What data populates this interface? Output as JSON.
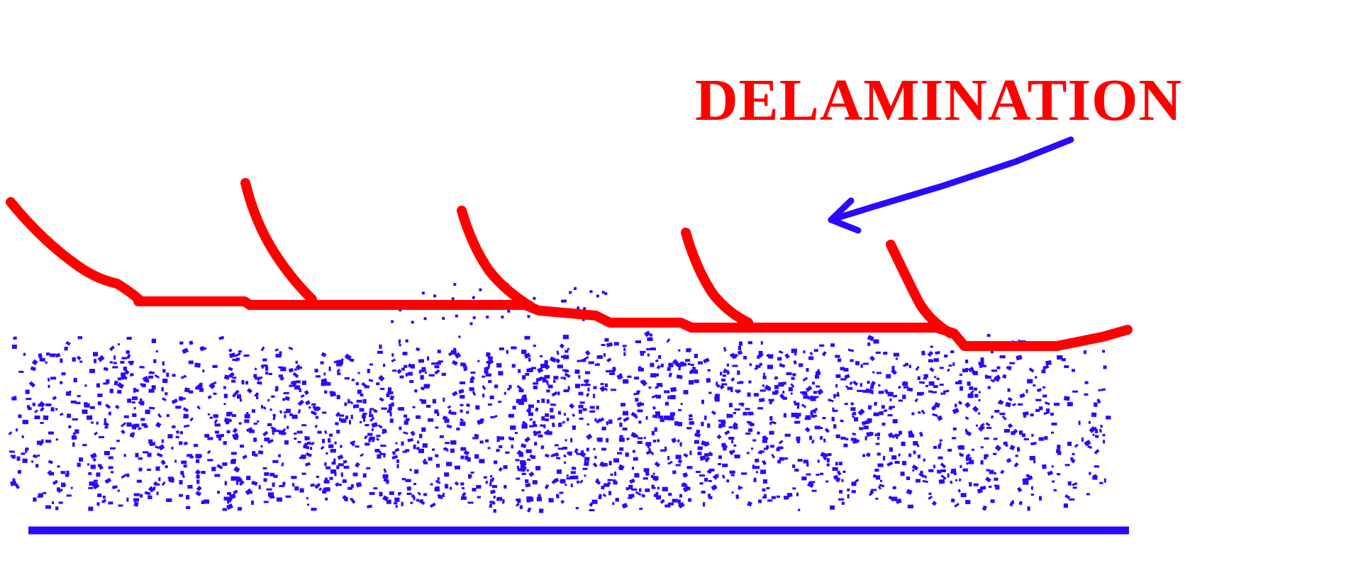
{
  "diagram": {
    "label": "DELAMINATION",
    "colors": {
      "background": "#ffffff",
      "coating": "#ff0000",
      "substrate": "#2a0aff",
      "arrow": "#2a0aff"
    }
  }
}
